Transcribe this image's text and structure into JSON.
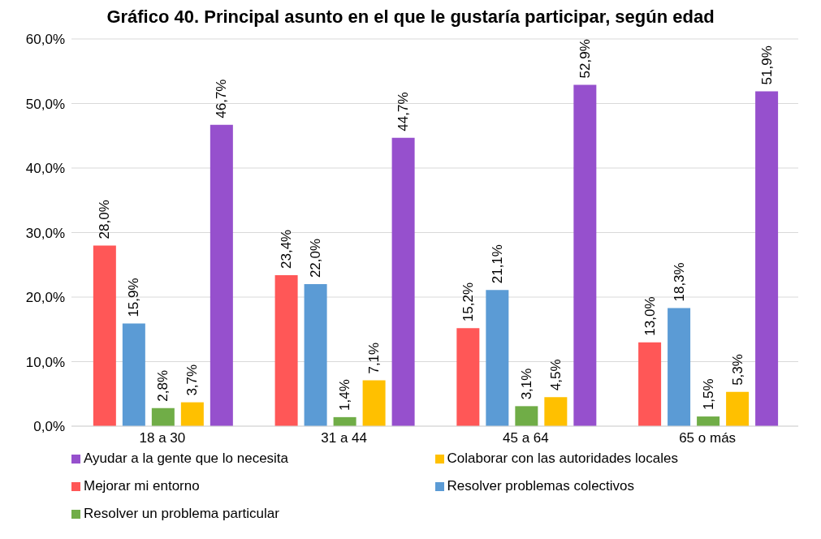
{
  "chart_data": {
    "type": "bar",
    "title": "Gráfico 40. Principal asunto en el que le gustaría participar, según edad",
    "categories": [
      "18 a 30",
      "31 a 44",
      "45 a 64",
      "65 o más"
    ],
    "series": [
      {
        "name": "Mejorar mi entorno",
        "color": "#ff5757",
        "values": [
          28.0,
          23.4,
          15.2,
          13.0
        ],
        "value_labels": [
          "28,0%",
          "23,4%",
          "15,2%",
          "13,0%"
        ]
      },
      {
        "name": "Resolver problemas colectivos",
        "color": "#5b9bd5",
        "values": [
          15.9,
          22.0,
          21.1,
          18.3
        ],
        "value_labels": [
          "15,9%",
          "22,0%",
          "21,1%",
          "18,3%"
        ]
      },
      {
        "name": "Resolver un problema particular",
        "color": "#70ad47",
        "values": [
          2.8,
          1.4,
          3.1,
          1.5
        ],
        "value_labels": [
          "2,8%",
          "1,4%",
          "3,1%",
          "1,5%"
        ]
      },
      {
        "name": "Colaborar con las autoridades locales",
        "color": "#ffc000",
        "values": [
          3.7,
          7.1,
          4.5,
          5.3
        ],
        "value_labels": [
          "3,7%",
          "7,1%",
          "4,5%",
          "5,3%"
        ]
      },
      {
        "name": "Ayudar a la gente que lo necesita",
        "color": "#9650cd",
        "values": [
          46.7,
          44.7,
          52.9,
          51.9
        ],
        "value_labels": [
          "46,7%",
          "44,7%",
          "52,9%",
          "51,9%"
        ]
      }
    ],
    "ylim": [
      0,
      60
    ],
    "yticks": [
      {
        "value": 0,
        "label": "0,0%"
      },
      {
        "value": 10,
        "label": "10,0%"
      },
      {
        "value": 20,
        "label": "20,0%"
      },
      {
        "value": 30,
        "label": "30,0%"
      },
      {
        "value": 40,
        "label": "40,0%"
      },
      {
        "value": 50,
        "label": "50,0%"
      },
      {
        "value": 60,
        "label": "60,0%"
      }
    ],
    "grid": "y",
    "legend": "bottom"
  }
}
